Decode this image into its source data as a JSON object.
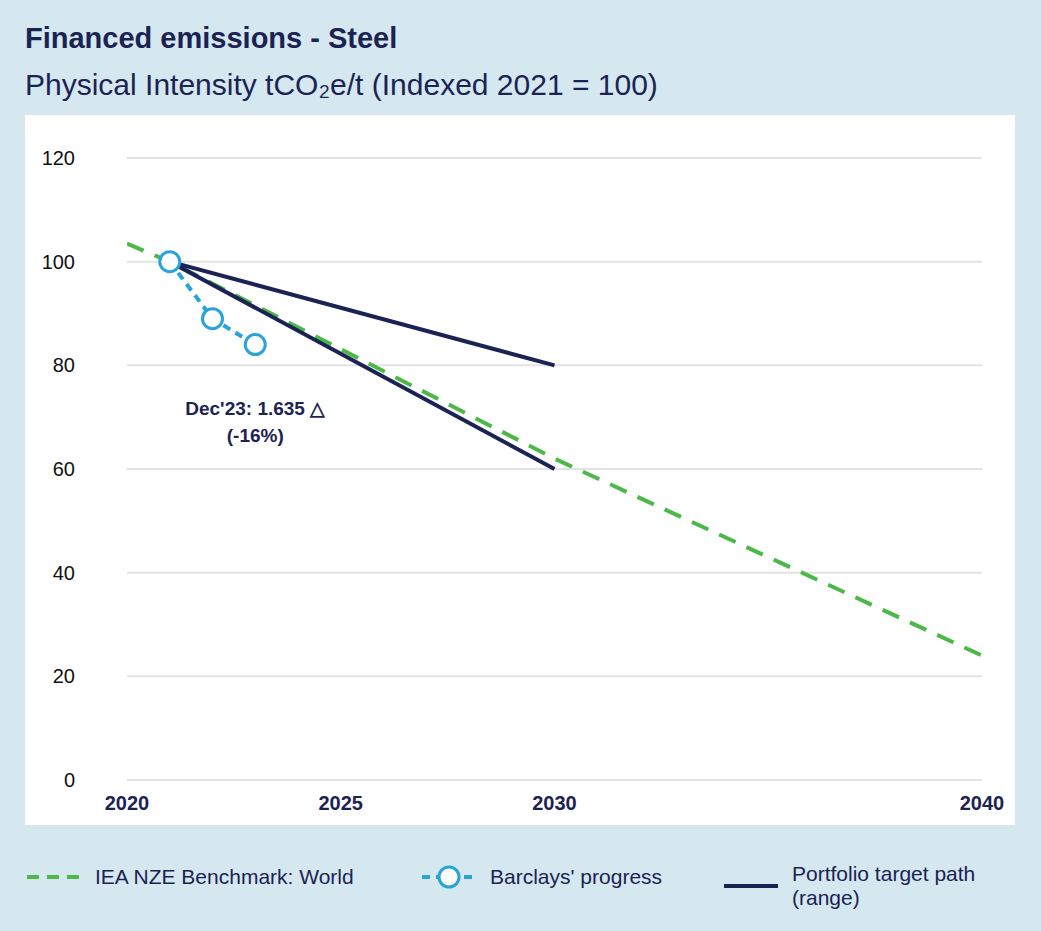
{
  "chart_data": {
    "type": "line",
    "title": "Financed emissions - Steel",
    "subtitle": "Physical Intensity tCO₂e/t (Indexed 2021 = 100)",
    "xlim": [
      2020,
      2040
    ],
    "xticks": [
      2020,
      2025,
      2030,
      2040
    ],
    "ylim": [
      0,
      120
    ],
    "yticks": [
      0,
      20,
      40,
      60,
      80,
      100,
      120
    ],
    "grid": true,
    "legend": "bottom",
    "series": [
      {
        "name": "IEA NZE Benchmark: World",
        "color": "#4cb848",
        "line_style": "dashed",
        "marker": "none",
        "x": [
          2020,
          2021,
          2030,
          2040
        ],
        "values": [
          103.5,
          100,
          62,
          24
        ]
      },
      {
        "name": "Barclays' progress",
        "color": "#29a3dc",
        "line_style": "dashed",
        "marker": "circle",
        "x": [
          2021,
          2022,
          2023
        ],
        "values": [
          100,
          89,
          84
        ],
        "annotation": [
          "Dec'23: 1.635 △",
          "(-16%)"
        ]
      },
      {
        "name": "Portfolio target path (range)",
        "color": "#1b2354",
        "line_style": "solid",
        "marker": "none",
        "x": [
          2021,
          2030
        ],
        "upper": [
          100,
          80
        ],
        "lower": [
          100,
          60
        ]
      }
    ]
  }
}
